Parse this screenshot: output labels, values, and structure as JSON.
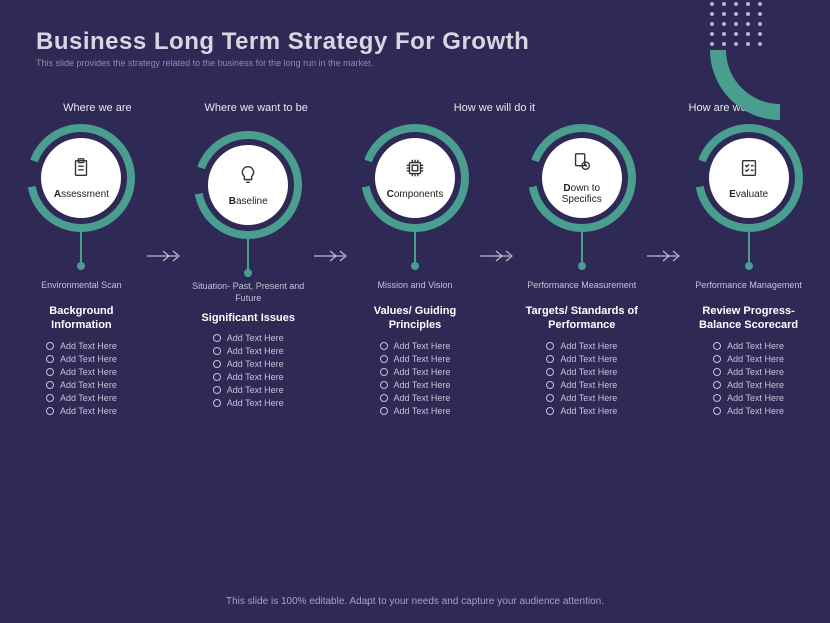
{
  "title": "Business Long Term Strategy For Growth",
  "subtitle": "This slide provides the strategy related to the business for the long run in the market.",
  "footer": "This slide is 100% editable. Adapt to your needs and capture your audience attention.",
  "colors": {
    "bg": "#2e2955",
    "accent": "#4a9e8f",
    "white": "#ffffff"
  },
  "questions": [
    "Where we are",
    "Where we want to be",
    "How we will do it",
    "How are we doing"
  ],
  "steps": [
    {
      "first": "A",
      "rest": "ssessment",
      "sublabel": "Environmental Scan",
      "category": "Background Information",
      "icon": "clipboard"
    },
    {
      "first": "B",
      "rest": "aseline",
      "sublabel": "Situation- Past, Present and Future",
      "category": "Significant Issues",
      "icon": "lightbulb"
    },
    {
      "first": "C",
      "rest": "omponents",
      "sublabel": "Mission and Vision",
      "category": "Values/ Guiding Principles",
      "icon": "chip"
    },
    {
      "first": "D",
      "rest": "own to Specifics",
      "sublabel": "Performance Measurement",
      "category": "Targets/ Standards of Performance",
      "icon": "target"
    },
    {
      "first": "E",
      "rest": "valuate",
      "sublabel": "Performance Management",
      "category": "Review Progress- Balance Scorecard",
      "icon": "checklist"
    }
  ],
  "bullet": "Add Text Here",
  "bulletCount": 6,
  "questionSpan": [
    1,
    1,
    2,
    1
  ]
}
